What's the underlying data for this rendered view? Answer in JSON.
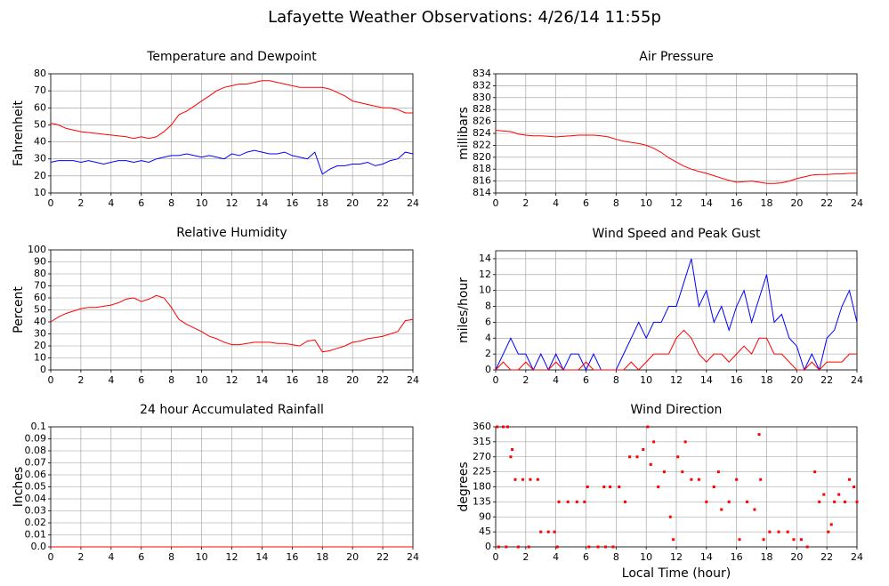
{
  "title": "Lafayette Weather Observations: 4/26/14 11:55p",
  "chart_data": [
    {
      "type": "line",
      "title": "Temperature and Dewpoint",
      "ylabel": "Fahrenheit",
      "x": [
        0,
        0.5,
        1,
        1.5,
        2,
        2.5,
        3,
        3.5,
        4,
        4.5,
        5,
        5.5,
        6,
        6.5,
        7,
        7.5,
        8,
        8.5,
        9,
        9.5,
        10,
        10.5,
        11,
        11.5,
        12,
        12.5,
        13,
        13.5,
        14,
        14.5,
        15,
        15.5,
        16,
        16.5,
        17,
        17.5,
        18,
        18.5,
        19,
        19.5,
        20,
        20.5,
        21,
        21.5,
        22,
        22.5,
        23,
        23.5,
        24
      ],
      "series": [
        {
          "color": "#ff0000",
          "values": [
            51,
            50,
            48,
            47,
            46,
            45.5,
            45,
            44.5,
            44,
            43.5,
            43,
            42,
            43,
            42,
            43,
            46,
            50,
            56,
            58,
            61,
            64,
            67,
            70,
            72,
            73,
            74,
            74,
            75,
            76,
            76,
            75,
            74,
            73,
            72,
            72,
            72,
            72,
            71,
            69,
            67,
            64,
            63,
            62,
            61,
            60,
            60,
            59,
            57,
            57
          ]
        },
        {
          "color": "#0000ff",
          "values": [
            28,
            29,
            29,
            29,
            28,
            29,
            28,
            27,
            28,
            29,
            29,
            28,
            29,
            28,
            30,
            31,
            32,
            32,
            33,
            32,
            31,
            32,
            31,
            30,
            33,
            32,
            34,
            35,
            34,
            33,
            33,
            34,
            32,
            31,
            30,
            34,
            21,
            24,
            26,
            26,
            27,
            27,
            28,
            26,
            27,
            29,
            30,
            34,
            33
          ]
        }
      ],
      "xlim": [
        0,
        24
      ],
      "ylim": [
        10,
        80
      ],
      "xticks": [
        0,
        2,
        4,
        6,
        8,
        10,
        12,
        14,
        16,
        18,
        20,
        22,
        24
      ],
      "yticks": [
        10,
        20,
        30,
        40,
        50,
        60,
        70,
        80
      ],
      "grid": true
    },
    {
      "type": "line",
      "title": "Air Pressure",
      "ylabel": "millibars",
      "x": [
        0,
        0.5,
        1,
        1.5,
        2,
        2.5,
        3,
        3.5,
        4,
        4.5,
        5,
        5.5,
        6,
        6.5,
        7,
        7.5,
        8,
        8.5,
        9,
        9.5,
        10,
        10.5,
        11,
        11.5,
        12,
        12.5,
        13,
        13.5,
        14,
        14.5,
        15,
        15.5,
        16,
        16.5,
        17,
        17.5,
        18,
        18.5,
        19,
        19.5,
        20,
        20.5,
        21,
        21.5,
        22,
        22.5,
        23,
        23.5,
        24
      ],
      "series": [
        {
          "color": "#ff0000",
          "values": [
            824.5,
            824.4,
            824.3,
            823.9,
            823.7,
            823.6,
            823.6,
            823.5,
            823.4,
            823.5,
            823.6,
            823.7,
            823.7,
            823.7,
            823.6,
            823.4,
            823.0,
            822.7,
            822.5,
            822.3,
            822.0,
            821.5,
            820.8,
            819.9,
            819.2,
            818.5,
            818.0,
            817.6,
            817.3,
            816.9,
            816.5,
            816.1,
            815.8,
            815.9,
            816.0,
            815.8,
            815.6,
            815.6,
            815.7,
            816.0,
            816.4,
            816.7,
            817.0,
            817.1,
            817.1,
            817.2,
            817.2,
            817.3,
            817.3
          ]
        }
      ],
      "xlim": [
        0,
        24
      ],
      "ylim": [
        814,
        834
      ],
      "xticks": [
        0,
        2,
        4,
        6,
        8,
        10,
        12,
        14,
        16,
        18,
        20,
        22,
        24
      ],
      "yticks": [
        814,
        816,
        818,
        820,
        822,
        824,
        826,
        828,
        830,
        832,
        834
      ],
      "grid": true
    },
    {
      "type": "line",
      "title": "Relative Humidity",
      "ylabel": "Percent",
      "x": [
        0,
        0.5,
        1,
        1.5,
        2,
        2.5,
        3,
        3.5,
        4,
        4.5,
        5,
        5.5,
        6,
        6.5,
        7,
        7.5,
        8,
        8.5,
        9,
        9.5,
        10,
        10.5,
        11,
        11.5,
        12,
        12.5,
        13,
        13.5,
        14,
        14.5,
        15,
        15.5,
        16,
        16.5,
        17,
        17.5,
        18,
        18.5,
        19,
        19.5,
        20,
        20.5,
        21,
        21.5,
        22,
        22.5,
        23,
        23.5,
        24
      ],
      "series": [
        {
          "color": "#ff0000",
          "values": [
            40,
            44,
            47,
            49,
            51,
            52,
            52,
            53,
            54,
            56,
            59,
            60,
            57,
            59,
            62,
            60,
            52,
            42,
            38,
            35,
            32,
            28,
            26,
            23,
            21,
            21,
            22,
            23,
            23,
            23,
            22,
            22,
            21,
            20,
            24,
            25,
            15,
            16,
            18,
            20,
            23,
            24,
            26,
            27,
            28,
            30,
            32,
            41,
            42
          ]
        }
      ],
      "xlim": [
        0,
        24
      ],
      "ylim": [
        0,
        100
      ],
      "xticks": [
        0,
        2,
        4,
        6,
        8,
        10,
        12,
        14,
        16,
        18,
        20,
        22,
        24
      ],
      "yticks": [
        0,
        10,
        20,
        30,
        40,
        50,
        60,
        70,
        80,
        90,
        100
      ],
      "grid": true
    },
    {
      "type": "line",
      "title": "Wind Speed and Peak Gust",
      "ylabel": "miles/hour",
      "x": [
        0,
        0.5,
        1,
        1.5,
        2,
        2.5,
        3,
        3.5,
        4,
        4.5,
        5,
        5.5,
        6,
        6.5,
        7,
        7.5,
        8,
        8.5,
        9,
        9.5,
        10,
        10.5,
        11,
        11.5,
        12,
        12.5,
        13,
        13.5,
        14,
        14.5,
        15,
        15.5,
        16,
        16.5,
        17,
        17.5,
        18,
        18.5,
        19,
        19.5,
        20,
        20.5,
        21,
        21.5,
        22,
        22.5,
        23,
        23.5,
        24
      ],
      "series": [
        {
          "color": "#0000ff",
          "values": [
            0,
            2,
            4,
            2,
            2,
            0,
            2,
            0,
            2,
            0,
            2,
            2,
            0,
            2,
            0,
            0,
            0,
            2,
            4,
            6,
            4,
            6,
            6,
            8,
            8,
            11,
            14,
            8,
            10,
            6,
            8,
            5,
            8,
            10,
            6,
            9,
            12,
            6,
            7,
            4,
            3,
            0,
            2,
            0,
            4,
            5,
            8,
            10,
            6
          ]
        },
        {
          "color": "#ff0000",
          "values": [
            0,
            1,
            0,
            0,
            1,
            0,
            0,
            0,
            1,
            0,
            0,
            0,
            1,
            0,
            0,
            0,
            0,
            0,
            1,
            0,
            1,
            2,
            2,
            2,
            4,
            5,
            4,
            2,
            1,
            2,
            2,
            1,
            2,
            3,
            2,
            4,
            4,
            2,
            2,
            1,
            0,
            0,
            1,
            0,
            1,
            1,
            1,
            2,
            2
          ]
        }
      ],
      "xlim": [
        0,
        24
      ],
      "ylim": [
        0,
        15
      ],
      "xticks": [
        0,
        2,
        4,
        6,
        8,
        10,
        12,
        14,
        16,
        18,
        20,
        22,
        24
      ],
      "yticks": [
        0,
        2,
        4,
        6,
        8,
        10,
        12,
        14
      ],
      "grid": true
    },
    {
      "type": "line",
      "title": "24 hour Accumulated Rainfall",
      "ylabel": "Inches",
      "x": [
        0,
        24
      ],
      "series": [
        {
          "color": "#ff0000",
          "values": [
            0,
            0
          ]
        }
      ],
      "xlim": [
        0,
        24
      ],
      "ylim": [
        0,
        0.1
      ],
      "xticks": [
        0,
        2,
        4,
        6,
        8,
        10,
        12,
        14,
        16,
        18,
        20,
        22,
        24
      ],
      "yticks": [
        {
          "value": 0,
          "label": "0.0"
        },
        0.01,
        0.02,
        0.03,
        0.04,
        0.05,
        0.06,
        0.07,
        0.08,
        0.09,
        0.1
      ],
      "grid": true
    },
    {
      "type": "scatter",
      "title": "Wind Direction",
      "ylabel": "degrees",
      "xlabel": "Local Time (hour)",
      "x": [
        0.1,
        0.2,
        0.5,
        0.7,
        0.8,
        1,
        1.1,
        1.3,
        1.5,
        1.8,
        2.2,
        2.3,
        2.8,
        3,
        3.5,
        3.9,
        4.1,
        4.2,
        4.8,
        5.4,
        5.9,
        6.1,
        6.2,
        6.8,
        7.2,
        7.3,
        7.6,
        7.8,
        8.2,
        8.6,
        8.9,
        9.4,
        9.8,
        10.1,
        10.3,
        10.5,
        10.8,
        11.2,
        11.6,
        11.8,
        12.1,
        12.4,
        12.6,
        13,
        13.5,
        14,
        14.5,
        14.8,
        15,
        15.5,
        16,
        16.2,
        16.7,
        17.2,
        17.5,
        17.6,
        17.8,
        18.2,
        18.8,
        19.4,
        19.8,
        20.3,
        20.7,
        21.2,
        21.5,
        21.8,
        22.1,
        22.3,
        22.5,
        22.8,
        23.2,
        23.5,
        23.8,
        24
      ],
      "series": [
        {
          "color": "#ff0000",
          "values": [
            360,
            0,
            360,
            0,
            360,
            270,
            292,
            202,
            0,
            202,
            0,
            202,
            202,
            45,
            45,
            45,
            0,
            135,
            135,
            135,
            135,
            180,
            0,
            0,
            180,
            0,
            180,
            0,
            180,
            135,
            270,
            270,
            292,
            360,
            247,
            315,
            180,
            225,
            90,
            22,
            270,
            225,
            315,
            202,
            202,
            135,
            180,
            225,
            112,
            135,
            202,
            22,
            135,
            112,
            337,
            202,
            22,
            45,
            45,
            45,
            22,
            22,
            0,
            225,
            135,
            157,
            45,
            67,
            135,
            157,
            135,
            202,
            180,
            135
          ]
        }
      ],
      "xlim": [
        0,
        24
      ],
      "ylim": [
        0,
        360
      ],
      "xticks": [
        0,
        2,
        4,
        6,
        8,
        10,
        12,
        14,
        16,
        18,
        20,
        22,
        24
      ],
      "yticks": [
        0,
        45,
        90,
        135,
        180,
        225,
        270,
        315,
        360
      ],
      "grid": true
    }
  ]
}
